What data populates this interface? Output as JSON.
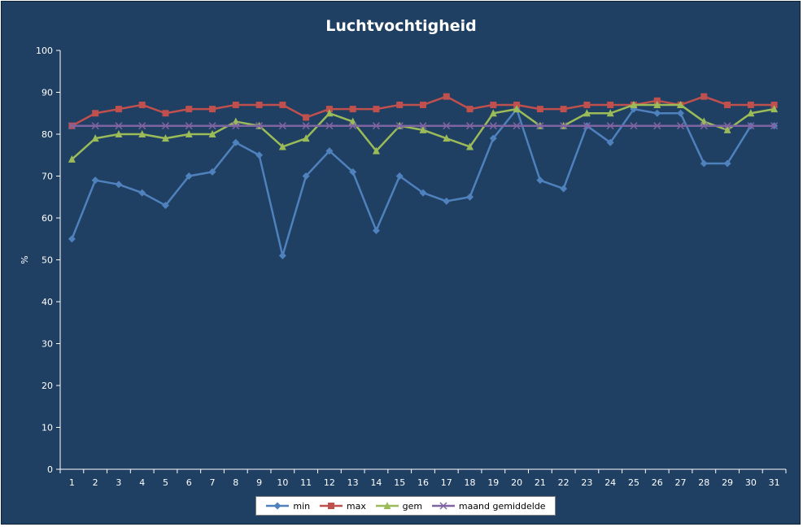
{
  "chart_data": {
    "type": "line",
    "title": "Luchtvochtigheid",
    "ylabel": "%",
    "xlabel": "",
    "ylim": [
      0,
      100
    ],
    "yticks": [
      0,
      10,
      20,
      30,
      40,
      50,
      60,
      70,
      80,
      90,
      100
    ],
    "grid": false,
    "legend_position": "bottom",
    "categories": [
      "1",
      "2",
      "3",
      "4",
      "5",
      "6",
      "7",
      "8",
      "9",
      "10",
      "11",
      "12",
      "13",
      "14",
      "15",
      "16",
      "17",
      "18",
      "19",
      "20",
      "21",
      "22",
      "23",
      "24",
      "25",
      "26",
      "27",
      "28",
      "29",
      "30",
      "31"
    ],
    "series": [
      {
        "name": "min",
        "color": "#4f81bd",
        "marker": "diamond",
        "values": [
          55,
          69,
          68,
          66,
          63,
          70,
          71,
          78,
          75,
          51,
          70,
          76,
          71,
          57,
          70,
          66,
          64,
          65,
          79,
          86,
          69,
          67,
          82,
          78,
          86,
          85,
          85,
          73,
          73,
          82,
          82
        ]
      },
      {
        "name": "max",
        "color": "#c0504d",
        "marker": "square",
        "values": [
          82,
          85,
          86,
          87,
          85,
          86,
          86,
          87,
          87,
          87,
          84,
          86,
          86,
          86,
          87,
          87,
          89,
          86,
          87,
          87,
          86,
          86,
          87,
          87,
          87,
          88,
          87,
          89,
          87,
          87,
          87
        ]
      },
      {
        "name": "gem",
        "color": "#9bbb59",
        "marker": "triangle",
        "values": [
          74,
          79,
          80,
          80,
          79,
          80,
          80,
          83,
          82,
          77,
          79,
          85,
          83,
          76,
          82,
          81,
          79,
          77,
          85,
          86,
          82,
          82,
          85,
          85,
          87,
          87,
          87,
          83,
          81,
          85,
          86
        ]
      },
      {
        "name": "maand gemiddelde",
        "color": "#8064a2",
        "marker": "x",
        "values": [
          82,
          82,
          82,
          82,
          82,
          82,
          82,
          82,
          82,
          82,
          82,
          82,
          82,
          82,
          82,
          82,
          82,
          82,
          82,
          82,
          82,
          82,
          82,
          82,
          82,
          82,
          82,
          82,
          82,
          82,
          82
        ]
      }
    ]
  }
}
